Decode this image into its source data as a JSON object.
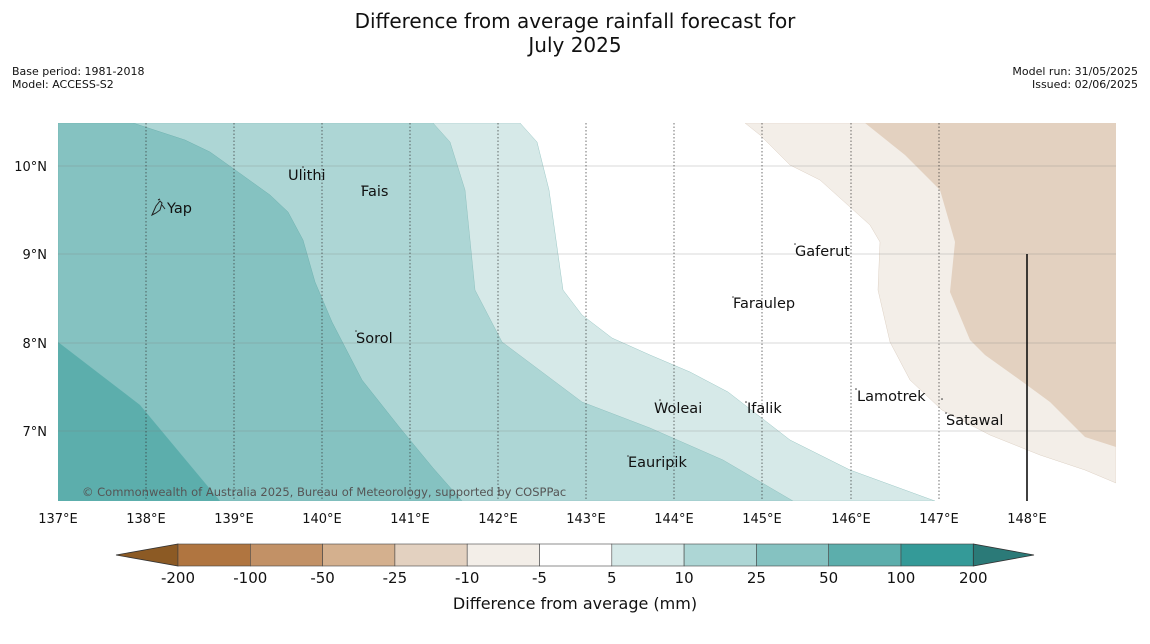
{
  "title_line1": "Difference from average rainfall forecast for",
  "title_line2": "July 2025",
  "meta_left": [
    "Base period: 1981-2018",
    "Model: ACCESS-S2"
  ],
  "meta_right": [
    "Model run: 31/05/2025",
    "Issued: 02/06/2025"
  ],
  "copyright": "© Commonwealth of Australia 2025, Bureau of Meteorology, supported by COSPPac",
  "lon_labels": [
    "137°E",
    "138°E",
    "139°E",
    "140°E",
    "141°E",
    "142°E",
    "143°E",
    "144°E",
    "145°E",
    "146°E",
    "147°E",
    "148°E"
  ],
  "lat_labels": [
    "10°N",
    "9°N",
    "8°N",
    "7°N"
  ],
  "places": [
    "Yap",
    "Ulithi",
    "Fais",
    "Gaferut",
    "Faraulep",
    "Sorol",
    "Lamotrek",
    "Woleai",
    "Ifalik",
    "Satawal",
    "Eauripik"
  ],
  "colorbar": {
    "label": "Difference from average (mm)",
    "ticks": [
      "-200",
      "-100",
      "-50",
      "-25",
      "-10",
      "-5",
      "5",
      "10",
      "25",
      "50",
      "100",
      "200"
    ],
    "colors": [
      "#8c5a24",
      "#b07540",
      "#c29166",
      "#d4b08e",
      "#e3d1c0",
      "#f3eee8",
      "#ffffff",
      "#d6e9e8",
      "#add6d5",
      "#85c2c1",
      "#5caeac",
      "#349a98",
      "#2b7a78"
    ]
  }
}
